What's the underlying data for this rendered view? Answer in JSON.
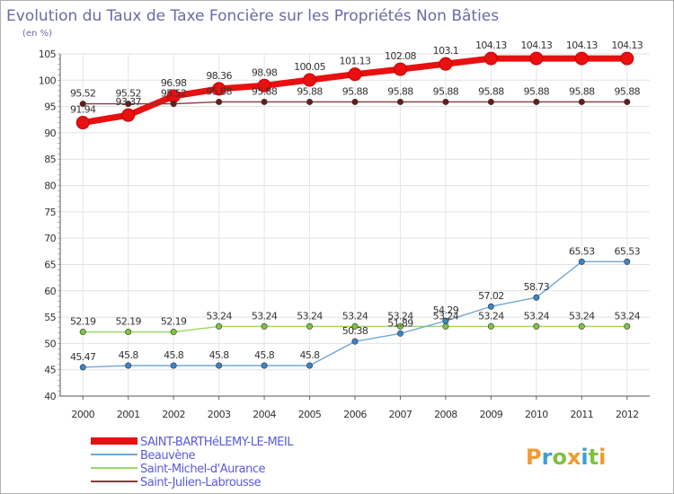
{
  "header": {
    "title": "Evolution du Taux de Taxe Foncière sur les Propriétés Non Bâties",
    "unit": "(en %)"
  },
  "branding": {
    "logo_text": "Proxiti",
    "logo_colors": [
      "#f29a2e",
      "#3aa0d8",
      "#7fc241",
      "#f29a2e",
      "#3aa0d8",
      "#7fc241",
      "#f29a2e"
    ]
  },
  "chart_data": {
    "type": "line",
    "title": "Evolution du Taux de Taxe Foncière sur les Propriétés Non Bâties",
    "ylabel": "(en %)",
    "xlabel": "",
    "ylim": [
      40,
      105
    ],
    "yticks": [
      40,
      45,
      50,
      55,
      60,
      65,
      70,
      75,
      80,
      85,
      90,
      95,
      100,
      105
    ],
    "grid": true,
    "legend_position": "bottom-left",
    "categories": [
      "2000",
      "2001",
      "2002",
      "2003",
      "2004",
      "2005",
      "2006",
      "2007",
      "2008",
      "2009",
      "2010",
      "2011",
      "2012"
    ],
    "series": [
      {
        "name": "SAINT-BARTHéLEMY-LE-MEIL",
        "values": [
          91.94,
          93.37,
          96.98,
          98.36,
          98.98,
          100.05,
          101.13,
          102.08,
          103.1,
          104.13,
          104.13,
          104.13,
          104.13
        ],
        "labels": [
          "91.94",
          "93.37",
          "96.98",
          "98.36",
          "98.98",
          "100.05",
          "101.13",
          "102.08",
          "103.1",
          "104.13",
          "104.13",
          "104.13",
          "104.13"
        ],
        "color": "#e81010",
        "marker_color": "#e81010",
        "width": "thick"
      },
      {
        "name": "Beauvène",
        "values": [
          45.47,
          45.8,
          45.8,
          45.8,
          45.8,
          45.8,
          50.38,
          51.89,
          54.29,
          57.02,
          58.73,
          65.53,
          65.53
        ],
        "labels": [
          "45.47",
          "45.8",
          "45.8",
          "45.8",
          "45.8",
          "45.8",
          "50.38",
          "51.89",
          "54.29",
          "57.02",
          "58.73",
          "65.53",
          "65.53"
        ],
        "color": "#6fa8d8",
        "marker_color": "#3a86c8",
        "width": "thin"
      },
      {
        "name": "Saint-Michel-d'Aurance",
        "values": [
          52.19,
          52.19,
          52.19,
          53.24,
          53.24,
          53.24,
          53.24,
          53.24,
          53.24,
          53.24,
          53.24,
          53.24,
          53.24
        ],
        "labels": [
          "52.19",
          "52.19",
          "52.19",
          "53.24",
          "53.24",
          "53.24",
          "53.24",
          "53.24",
          "53.24",
          "53.24",
          "53.24",
          "53.24",
          "53.24"
        ],
        "color": "#98d860",
        "marker_color": "#7cc63c",
        "width": "thin"
      },
      {
        "name": "Saint-Julien-Labrousse",
        "values": [
          95.52,
          95.52,
          95.52,
          95.88,
          95.88,
          95.88,
          95.88,
          95.88,
          95.88,
          95.88,
          95.88,
          95.88,
          95.88
        ],
        "labels": [
          "95.52",
          "95.52",
          "95.52",
          "95.88",
          "95.88",
          "95.88",
          "95.88",
          "95.88",
          "95.88",
          "95.88",
          "95.88",
          "95.88",
          "95.88"
        ],
        "color": "#8a3a3a",
        "marker_color": "#6a1a1a",
        "width": "thin"
      }
    ]
  }
}
